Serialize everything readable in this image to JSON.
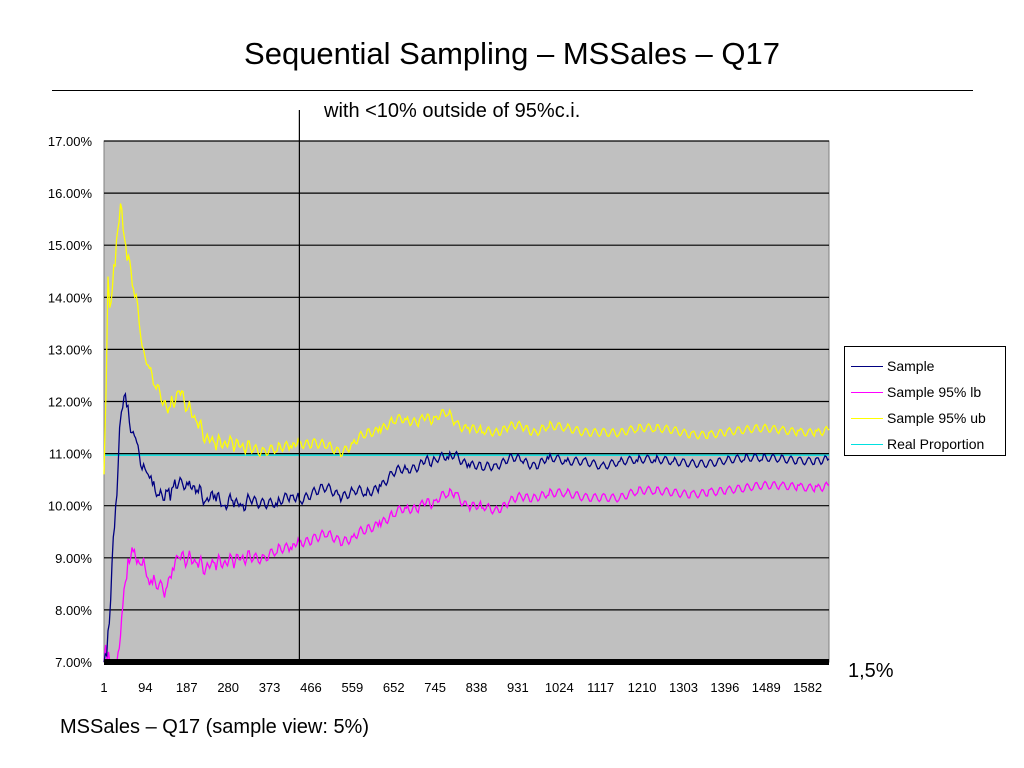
{
  "slide": {
    "title": "Sequential Sampling – MSSales – Q17",
    "subtitle": "with <10% outside of 95%c.i.",
    "right_note": "1,5%",
    "caption": "MSSales – Q17 (sample view: 5%)"
  },
  "chart_data": {
    "type": "line",
    "title": "",
    "xlabel": "",
    "ylabel": "",
    "x_ticks": [
      "1",
      "94",
      "187",
      "280",
      "373",
      "466",
      "559",
      "652",
      "745",
      "838",
      "931",
      "1024",
      "1117",
      "1210",
      "1303",
      "1396",
      "1489",
      "1582"
    ],
    "y_ticks": [
      "7.00%",
      "8.00%",
      "9.00%",
      "10.00%",
      "11.00%",
      "12.00%",
      "13.00%",
      "14.00%",
      "15.00%",
      "16.00%",
      "17.00%"
    ],
    "xlim": [
      1,
      1630
    ],
    "ylim": [
      7,
      17
    ],
    "grid": true,
    "legend_position": "right",
    "vertical_marker_x": 440,
    "colors": {
      "plot_bg": "#c0c0c0",
      "sample": "#000080",
      "lb": "#ff00ff",
      "ub": "#ffff00",
      "real": "#00e0e0"
    },
    "series": [
      {
        "name": "Sample",
        "x": [
          1,
          10,
          16,
          22,
          30,
          36,
          40,
          46,
          52,
          58,
          64,
          72,
          80,
          90,
          100,
          110,
          125,
          140,
          150,
          160,
          175,
          190,
          210,
          230,
          250,
          270,
          290,
          310,
          330,
          360,
          390,
          420,
          440,
          470,
          500,
          530,
          560,
          590,
          620,
          650,
          680,
          710,
          745,
          775,
          790,
          820,
          850,
          880,
          910,
          940,
          970,
          1000,
          1040,
          1080,
          1120,
          1160,
          1200,
          1240,
          1280,
          1320,
          1360,
          1400,
          1440,
          1480,
          1520,
          1560,
          1600,
          1630
        ],
        "values": [
          7.0,
          7.6,
          8.2,
          9.4,
          10.2,
          11.5,
          11.8,
          12.1,
          11.9,
          11.6,
          11.4,
          11.3,
          11.0,
          10.8,
          10.6,
          10.4,
          10.2,
          10.3,
          10.1,
          10.5,
          10.5,
          10.4,
          10.3,
          10.1,
          10.2,
          10.0,
          10.1,
          10.0,
          10.1,
          10.1,
          10.0,
          10.2,
          10.1,
          10.3,
          10.3,
          10.2,
          10.3,
          10.2,
          10.4,
          10.6,
          10.7,
          10.8,
          10.9,
          10.9,
          11.0,
          10.8,
          10.7,
          10.8,
          10.9,
          10.85,
          10.8,
          10.9,
          10.85,
          10.9,
          10.8,
          10.85,
          10.85,
          10.85,
          10.85,
          10.85,
          10.85,
          10.88,
          10.88,
          10.88,
          10.9,
          10.9,
          10.9,
          10.9
        ]
      },
      {
        "name": "Sample 95% lb",
        "x": [
          1,
          8,
          14,
          22,
          30,
          38,
          46,
          52,
          58,
          64,
          72,
          80,
          90,
          100,
          110,
          125,
          140,
          155,
          170,
          190,
          210,
          230,
          250,
          270,
          290,
          310,
          330,
          360,
          390,
          420,
          440,
          470,
          500,
          530,
          560,
          590,
          620,
          650,
          680,
          710,
          745,
          775,
          790,
          820,
          850,
          880,
          910,
          940,
          970,
          1000,
          1040,
          1080,
          1120,
          1160,
          1200,
          1240,
          1280,
          1320,
          1360,
          1400,
          1440,
          1480,
          1520,
          1560,
          1600,
          1630
        ],
        "values": [
          7.0,
          7.0,
          7.0,
          7.0,
          7.0,
          7.5,
          8.4,
          8.6,
          8.9,
          9.2,
          9.0,
          8.9,
          9.0,
          8.6,
          8.5,
          8.5,
          8.4,
          8.8,
          9.0,
          9.0,
          8.9,
          8.8,
          8.9,
          8.9,
          8.95,
          9.0,
          9.0,
          9.05,
          9.1,
          9.2,
          9.3,
          9.4,
          9.4,
          9.35,
          9.4,
          9.5,
          9.7,
          9.8,
          9.95,
          10.0,
          10.1,
          10.2,
          10.25,
          10.0,
          9.95,
          9.95,
          10.05,
          10.15,
          10.2,
          10.2,
          10.25,
          10.2,
          10.2,
          10.15,
          10.25,
          10.25,
          10.25,
          10.25,
          10.3,
          10.3,
          10.3,
          10.35,
          10.38,
          10.4,
          10.38,
          10.38
        ]
      },
      {
        "name": "Sample 95% ub",
        "x": [
          1,
          6,
          10,
          14,
          20,
          26,
          32,
          38,
          44,
          50,
          56,
          62,
          70,
          80,
          90,
          100,
          115,
          130,
          150,
          170,
          190,
          210,
          230,
          250,
          270,
          290,
          310,
          330,
          360,
          390,
          420,
          440,
          470,
          500,
          530,
          560,
          590,
          620,
          650,
          680,
          710,
          745,
          775,
          790,
          820,
          850,
          880,
          910,
          940,
          970,
          1000,
          1040,
          1080,
          1120,
          1160,
          1200,
          1240,
          1280,
          1320,
          1360,
          1400,
          1440,
          1480,
          1520,
          1560,
          1600,
          1630
        ],
        "values": [
          10.6,
          12.3,
          14.4,
          13.8,
          14.2,
          14.6,
          15.3,
          15.8,
          15.3,
          15.0,
          14.8,
          14.5,
          14.0,
          13.5,
          13.0,
          12.7,
          12.3,
          12.0,
          11.9,
          12.2,
          11.9,
          11.6,
          11.3,
          11.2,
          11.2,
          11.2,
          11.15,
          11.1,
          11.1,
          11.05,
          11.15,
          11.2,
          11.25,
          11.1,
          11.05,
          11.2,
          11.35,
          11.5,
          11.6,
          11.65,
          11.65,
          11.7,
          11.75,
          11.6,
          11.5,
          11.4,
          11.45,
          11.5,
          11.5,
          11.45,
          11.5,
          11.5,
          11.45,
          11.45,
          11.4,
          11.45,
          11.45,
          11.45,
          11.4,
          11.4,
          11.42,
          11.42,
          11.45,
          11.45,
          11.45,
          11.45,
          11.45
        ]
      },
      {
        "name": "Real Proportion",
        "x": [
          1,
          1630
        ],
        "values": [
          10.97,
          10.97
        ]
      }
    ]
  }
}
